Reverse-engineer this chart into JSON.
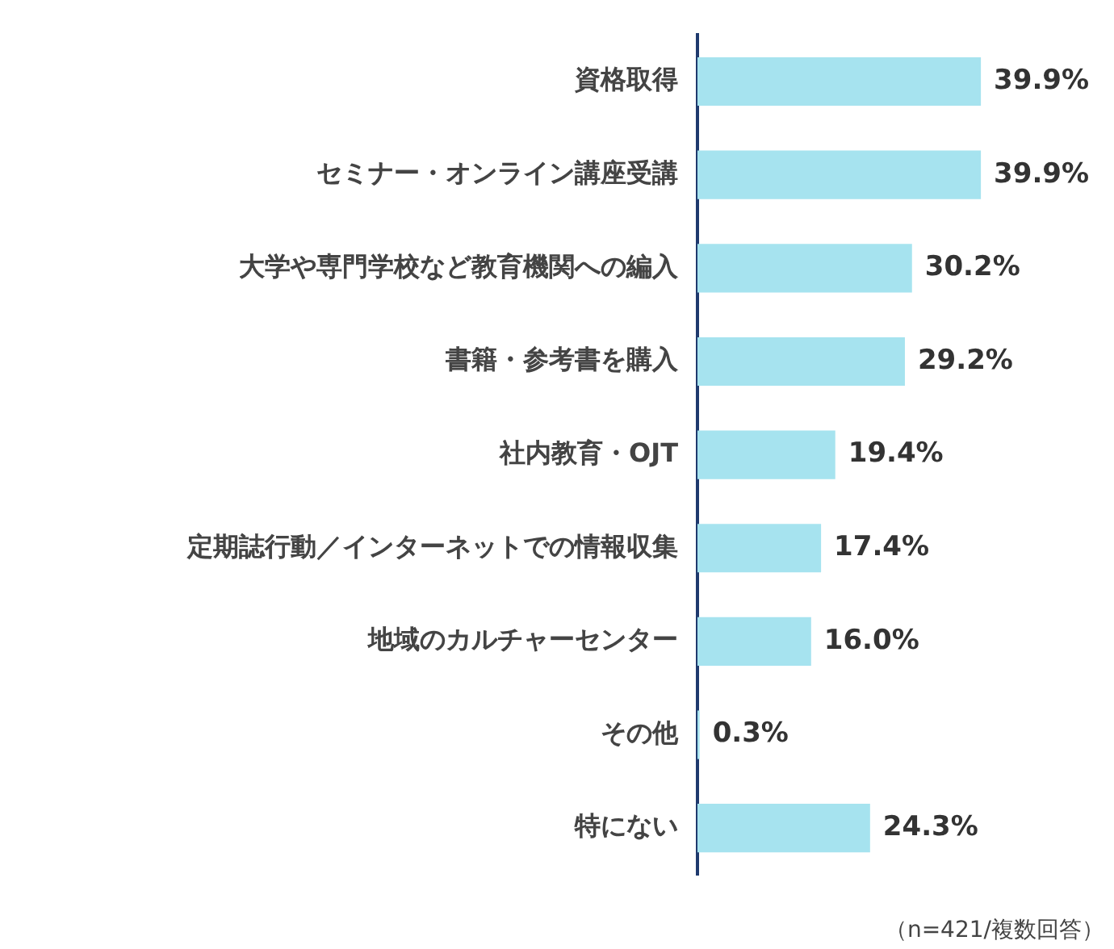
{
  "chart_data": {
    "type": "bar",
    "orientation": "horizontal",
    "categories": [
      "資格取得",
      "セミナー・オンライン講座受講",
      "大学や専門学校など教育機関への編入",
      "書籍・参考書を購入",
      "社内教育・OJT",
      "定期誌行動／インターネットでの情報収集",
      "地域のカルチャーセンター",
      "その他",
      "特にない"
    ],
    "values": [
      39.9,
      39.9,
      30.2,
      29.2,
      19.4,
      17.4,
      16.0,
      0.3,
      24.3
    ],
    "value_labels": [
      "39.9%",
      "39.9%",
      "30.2%",
      "29.2%",
      "19.4%",
      "17.4%",
      "16.0%",
      "0.3%",
      "24.3%"
    ],
    "color": "#a6e3ef",
    "tick_labels": "y",
    "grid": false,
    "legend": false,
    "annotations": [
      "（n=421/複数回答）"
    ]
  }
}
